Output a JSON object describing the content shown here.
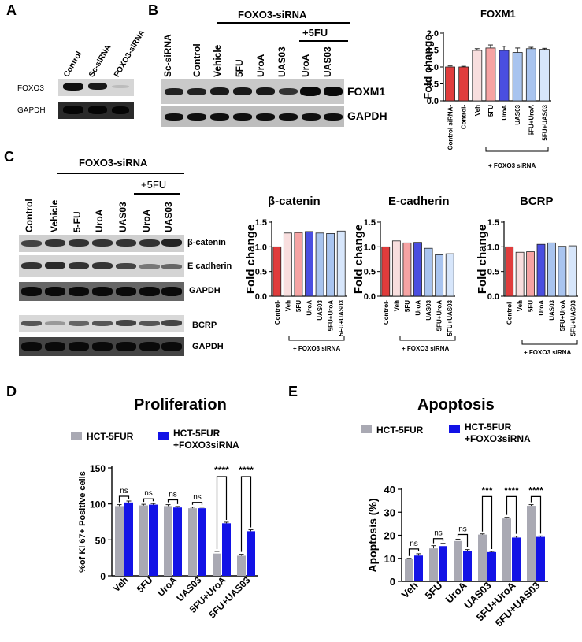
{
  "panels": {
    "A": {
      "label": "A",
      "lanes": [
        "Control",
        "Sc-siRNA",
        "FOXO3-siRNA"
      ],
      "rows": [
        "FOXO3",
        "GAPDH"
      ]
    },
    "B": {
      "label": "B",
      "group_label": "FOXO3-siRNA",
      "plus5fu_label": "+5FU",
      "lanes": [
        "Sc-siRNA",
        "Control",
        "Vehicle",
        "5FU",
        "UroA",
        "UAS03",
        "UroA",
        "UAS03"
      ],
      "rows": [
        "FOXM1",
        "GAPDH"
      ]
    },
    "C": {
      "label": "C",
      "group_label": "FOXO3-siRNA",
      "plus5fu_label": "+5FU",
      "lanes": [
        "Control",
        "Vehicle",
        "5-FU",
        "UroA",
        "UAS03",
        "UroA",
        "UAS03"
      ],
      "rows": [
        "β-catenin",
        "E cadherin",
        "GAPDH",
        "BCRP",
        "GAPDH"
      ]
    },
    "D": {
      "label": "D"
    },
    "E": {
      "label": "E"
    }
  },
  "colors": {
    "red": "#e03c3c",
    "pink": "#f6a3a3",
    "blush": "#f8dede",
    "blue": "#4a4ee0",
    "ltblue": "#a9c4ef",
    "paleblue": "#d7e6fb",
    "grey": "#a9a9b3",
    "deepblue": "#1212e6"
  },
  "chart_data": [
    {
      "id": "foxm1",
      "type": "bar",
      "title": "FOXM1",
      "ylabel": "Fold change",
      "ylim": [
        0,
        2
      ],
      "yticks": [
        "0.0",
        "0.5",
        "1.0",
        "1.5",
        "2.0"
      ],
      "yticks_vals": [
        0,
        0.5,
        1,
        1.5,
        2
      ],
      "categories": [
        "Control siRNA-",
        "Control-",
        "Veh",
        "5FU",
        "UroA",
        "UAS03",
        "5FU+UroA",
        "5FU+UAS03"
      ],
      "values": [
        1.0,
        1.0,
        1.49,
        1.56,
        1.49,
        1.43,
        1.54,
        1.52
      ],
      "errors": [
        0.03,
        0.02,
        0.05,
        0.09,
        0.12,
        0.13,
        0.04,
        0.03
      ],
      "colors": [
        "#e03c3c",
        "#e03c3c",
        "#f8dede",
        "#f6a3a3",
        "#4a4ee0",
        "#a9c4ef",
        "#a9c4ef",
        "#d7e6fb"
      ],
      "bracket_label": "+ FOXO3 siRNA"
    },
    {
      "id": "bcat",
      "type": "bar",
      "title": "β-catenin",
      "ylabel": "Fold change",
      "ylim": [
        0,
        1.5
      ],
      "yticks": [
        "0.0",
        "0.5",
        "1.0",
        "1.5"
      ],
      "yticks_vals": [
        0,
        0.5,
        1,
        1.5
      ],
      "categories": [
        "Control-",
        "Veh",
        "5FU",
        "UroA",
        "UAS03",
        "5FU+UroA",
        "5FU+UAS03"
      ],
      "values": [
        1.0,
        1.28,
        1.29,
        1.31,
        1.28,
        1.27,
        1.32
      ],
      "colors": [
        "#e03c3c",
        "#f8dede",
        "#f6a3a3",
        "#4a4ee0",
        "#a9c4ef",
        "#a9c4ef",
        "#d7e6fb"
      ],
      "bracket_label": "+ FOXO3 siRNA"
    },
    {
      "id": "ecad",
      "type": "bar",
      "title": "E-cadherin",
      "ylabel": "Fold change",
      "ylim": [
        0,
        1.5
      ],
      "yticks": [
        "0.0",
        "0.5",
        "1.0",
        "1.5"
      ],
      "yticks_vals": [
        0,
        0.5,
        1,
        1.5
      ],
      "categories": [
        "Control-",
        "Veh",
        "5FU",
        "UroA",
        "UAS03",
        "5FU+UroA",
        "5FU+UAS03"
      ],
      "values": [
        1.0,
        1.12,
        1.08,
        1.09,
        0.97,
        0.84,
        0.86
      ],
      "colors": [
        "#e03c3c",
        "#f8dede",
        "#f6a3a3",
        "#4a4ee0",
        "#a9c4ef",
        "#a9c4ef",
        "#d7e6fb"
      ],
      "bracket_label": "+ FOXO3 siRNA"
    },
    {
      "id": "bcrp",
      "type": "bar",
      "title": "BCRP",
      "ylabel": "Fold change",
      "ylim": [
        0,
        1.5
      ],
      "yticks": [
        "0.0",
        "0.5",
        "1.0",
        "1.5"
      ],
      "yticks_vals": [
        0,
        0.5,
        1,
        1.5
      ],
      "categories": [
        "Control-",
        "Veh",
        "5FU",
        "UroA",
        "UAS03",
        "5FU+UroA",
        "5FU+UAS03"
      ],
      "values": [
        1.0,
        0.89,
        0.9,
        1.05,
        1.08,
        1.01,
        1.02
      ],
      "colors": [
        "#e03c3c",
        "#f8dede",
        "#f6a3a3",
        "#4a4ee0",
        "#a9c4ef",
        "#a9c4ef",
        "#d7e6fb"
      ],
      "bracket_label": "+ FOXO3 siRNA"
    },
    {
      "id": "prolif",
      "type": "bar",
      "title": "Proliferation",
      "ylabel": "%of Ki 67+ Positive cells",
      "ylim": [
        0,
        150
      ],
      "yticks": [
        "0",
        "50",
        "100",
        "150"
      ],
      "yticks_vals": [
        0,
        50,
        100,
        150
      ],
      "categories": [
        "Veh",
        "5FU",
        "UroA",
        "UAS03",
        "5FU+UroA",
        "5FU+UAS03"
      ],
      "series": [
        {
          "name": "HCT-5FUR",
          "values": [
            97,
            98,
            97,
            94,
            31,
            28
          ],
          "errors": [
            2,
            1.5,
            2,
            1.5,
            3,
            2
          ]
        },
        {
          "name": "HCT-5FUR +FOXO3siRNA",
          "values": [
            102,
            99,
            95,
            94,
            73,
            62
          ],
          "errors": [
            2,
            1.5,
            1.5,
            1.5,
            1.5,
            2
          ]
        }
      ],
      "legend": [
        "HCT-5FUR",
        "HCT-5FUR",
        "+FOXO3siRNA"
      ],
      "significance": [
        "ns",
        "ns",
        "ns",
        "ns",
        "****",
        "****"
      ]
    },
    {
      "id": "apop",
      "type": "bar",
      "title": "Apoptosis",
      "ylabel": "Apoptosis (%)",
      "ylim": [
        0,
        40
      ],
      "yticks": [
        "0",
        "10",
        "20",
        "30",
        "40"
      ],
      "yticks_vals": [
        0,
        10,
        20,
        30,
        40
      ],
      "categories": [
        "Veh",
        "5FU",
        "UroA",
        "UAS03",
        "5FU+UroA",
        "5FU+UAS03"
      ],
      "series": [
        {
          "name": "HCT-5FUR",
          "values": [
            9.6,
            14.3,
            17.5,
            20.3,
            27.3,
            32.8
          ],
          "errors": [
            0.4,
            1.2,
            0.8,
            0.3,
            0.5,
            0.5
          ]
        },
        {
          "name": "HCT-5FUR +FOXO3siRNA",
          "values": [
            11.2,
            15.3,
            13.2,
            12.7,
            19.0,
            19.3
          ],
          "errors": [
            0.8,
            1.2,
            0.6,
            0.3,
            0.6,
            0.4
          ]
        }
      ],
      "legend": [
        "HCT-5FUR",
        "HCT-5FUR",
        "+FOXO3siRNA"
      ],
      "significance": [
        "ns",
        "ns",
        "ns",
        "***",
        "****",
        "****"
      ]
    }
  ]
}
